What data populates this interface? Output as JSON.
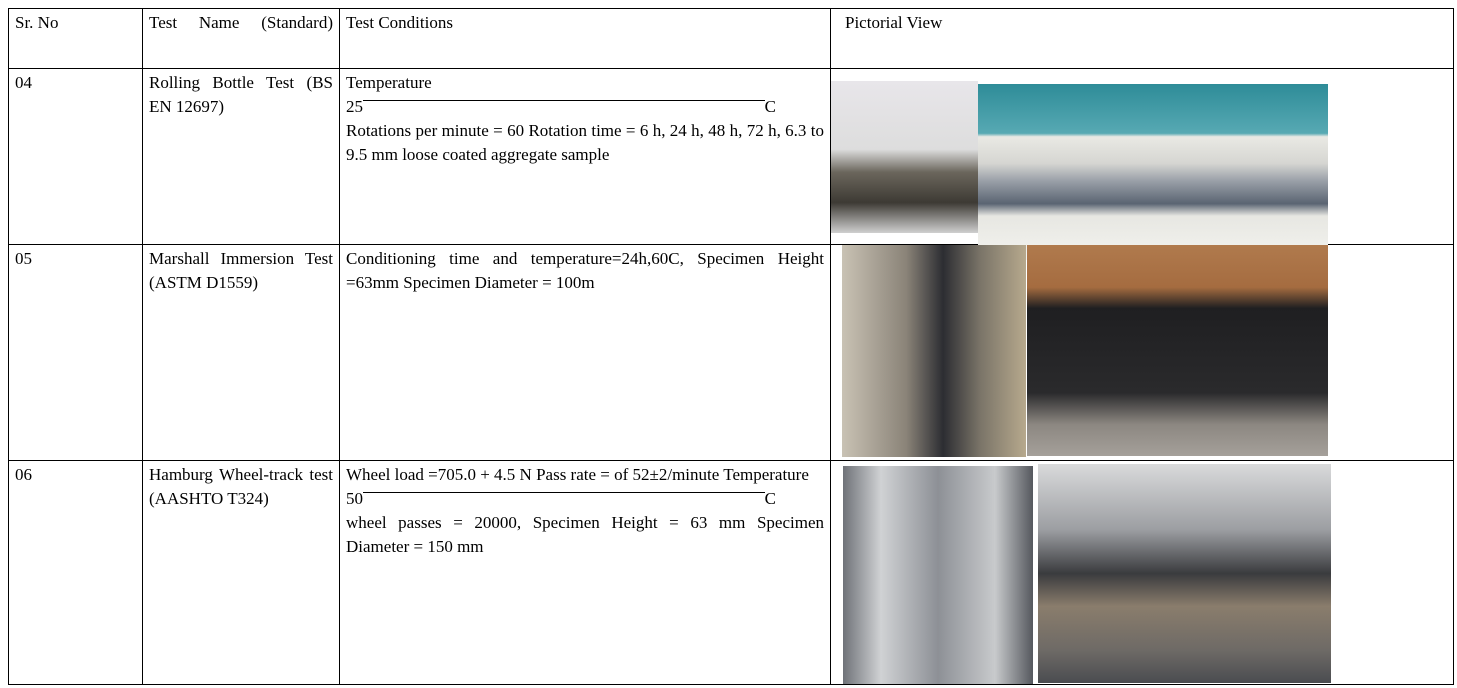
{
  "table": {
    "header": [
      "Sr. No",
      "Test Name (Standard)",
      "Test Conditions",
      "Pictorial View"
    ],
    "rows": [
      {
        "no": "04",
        "name": "Rolling Bottle Test (BS EN 12697)",
        "conditions": [
          {
            "text": "Temperature"
          },
          {
            "left": "25",
            "right": "C"
          },
          {
            "text": "Rotations per minute = 60 Rotation time = 6 h, 24 h, 48 h, 72 h, 6.3 to 9.5 mm loose coated aggregate sample"
          }
        ]
      },
      {
        "no": "05",
        "name": "Marshall Immersion Test (ASTM D1559)",
        "conditions": [
          {
            "text": "Conditioning time and temperature=24h,60C, Specimen Height =63mm Specimen Diameter = 100m"
          }
        ]
      },
      {
        "no": "06",
        "name": "Hamburg Wheel-track test (AASHTO T324)",
        "conditions": [
          {
            "text": "Wheel load =705.0 + 4.5 N Pass rate = of 52±2/minute Temperature"
          },
          {
            "left": "50",
            "right": "C"
          },
          {
            "text": "wheel passes = 20000, Specimen Height = 63 mm Specimen Diameter = 150 mm"
          }
        ]
      }
    ]
  }
}
